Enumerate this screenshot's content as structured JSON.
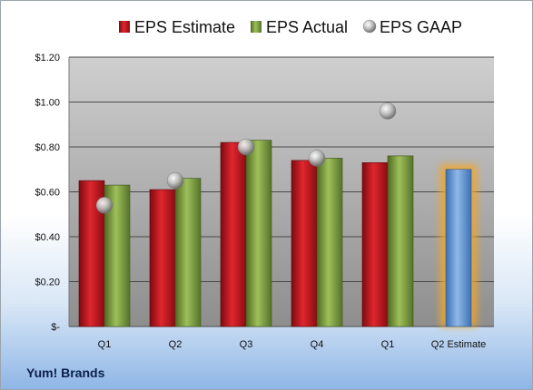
{
  "company_label": "Yum! Brands",
  "chart_data": {
    "type": "bar",
    "categories": [
      "Q1",
      "Q2",
      "Q3",
      "Q4",
      "Q1",
      "Q2 Estimate"
    ],
    "series": [
      {
        "name": "EPS Estimate",
        "type": "bar",
        "color": "#c0141c",
        "values": [
          0.65,
          0.61,
          0.82,
          0.74,
          0.73,
          null
        ]
      },
      {
        "name": "EPS Actual",
        "type": "bar",
        "color": "#7a9a3c",
        "values": [
          0.63,
          0.66,
          0.83,
          0.75,
          0.76,
          null
        ]
      },
      {
        "name": "EPS GAAP",
        "type": "scatter",
        "color": "#b9b9b9",
        "values": [
          0.54,
          0.65,
          0.8,
          0.75,
          0.96,
          null
        ]
      }
    ],
    "estimate_bar": {
      "category": "Q2 Estimate",
      "value": 0.7,
      "color": "#5b8fd0",
      "glow_color": "#f5a623"
    },
    "y_ticks": [
      {
        "value": 0,
        "label": "$-"
      },
      {
        "value": 0.2,
        "label": "$0.20"
      },
      {
        "value": 0.4,
        "label": "$0.40"
      },
      {
        "value": 0.6,
        "label": "$0.60"
      },
      {
        "value": 0.8,
        "label": "$0.80"
      },
      {
        "value": 1.0,
        "label": "$1.00"
      },
      {
        "value": 1.2,
        "label": "$1.20"
      }
    ],
    "ylim": [
      0,
      1.2
    ],
    "grid": true,
    "legend_position": "top"
  }
}
